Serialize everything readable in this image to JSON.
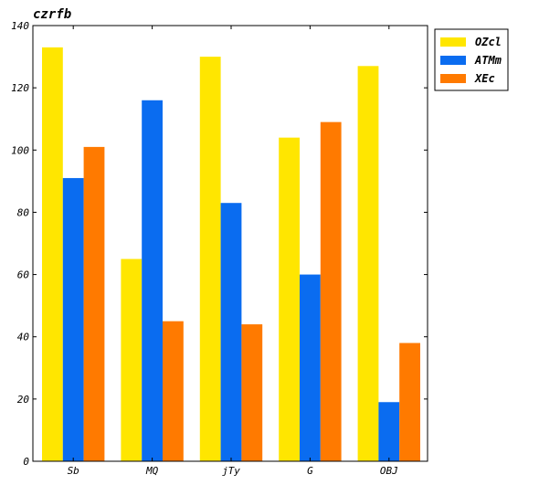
{
  "chart_data": {
    "type": "bar",
    "title": "czrfb",
    "xlabel": "",
    "ylabel": "",
    "categories": [
      "Sb",
      "MQ",
      "jTy",
      "G",
      "OBJ"
    ],
    "series": [
      {
        "name": "OZcl",
        "color": "#FFE600",
        "values": [
          133,
          65,
          130,
          104,
          127
        ]
      },
      {
        "name": "ATMm",
        "color": "#0A6CF0",
        "values": [
          91,
          116,
          83,
          60,
          19
        ]
      },
      {
        "name": "XEc",
        "color": "#FF7A00",
        "values": [
          101,
          45,
          44,
          109,
          38
        ]
      }
    ],
    "ylim": [
      0,
      140
    ],
    "yticks": [
      0,
      20,
      40,
      60,
      80,
      100,
      120,
      140
    ],
    "grid": false,
    "legend": "top-right"
  }
}
